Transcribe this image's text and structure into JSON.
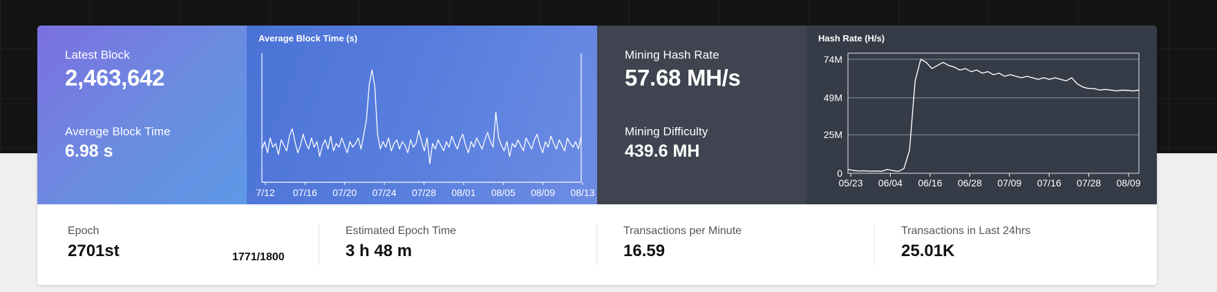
{
  "latest_block": {
    "label": "Latest Block",
    "value": "2,463,642"
  },
  "average_block_time": {
    "label": "Average Block Time",
    "value": "6.98 s"
  },
  "mining_hash_rate": {
    "label": "Mining Hash Rate",
    "value": "57.68 MH/s"
  },
  "mining_difficulty": {
    "label": "Mining Difficulty",
    "value": "439.6 MH"
  },
  "epoch": {
    "label": "Epoch",
    "value": "2701st",
    "progress": "1771/1800"
  },
  "estimated_epoch_time": {
    "label": "Estimated Epoch Time",
    "value": "3 h 48 m"
  },
  "transactions_per_minute": {
    "label": "Transactions per Minute",
    "value": "16.59"
  },
  "transactions_24h": {
    "label": "Transactions in Last 24hrs",
    "value": "25.01K"
  },
  "colors": {
    "block_panel": "#7086e0",
    "block_chart_panel": "#5a80de",
    "mining_panel": "#3f4450",
    "hash_chart_panel": "#353c47"
  },
  "chart_data": [
    {
      "type": "line",
      "title": "Average Block Time (s)",
      "x_tick_labels": [
        "7/12",
        "07/16",
        "07/20",
        "07/24",
        "07/28",
        "08/01",
        "08/05",
        "08/09",
        "08/13"
      ],
      "grid": false,
      "series": [
        {
          "values": [
            6.8,
            7.2,
            6.6,
            7.4,
            6.9,
            7.1,
            6.5,
            7.3,
            7.0,
            6.7,
            7.5,
            7.9,
            7.2,
            6.6,
            7.0,
            7.6,
            7.1,
            6.8,
            7.4,
            6.9,
            7.2,
            6.4,
            7.0,
            7.3,
            6.8,
            7.5,
            6.7,
            7.1,
            6.9,
            7.4,
            7.0,
            6.6,
            7.2,
            6.9,
            7.1,
            7.4,
            6.8,
            7.6,
            8.4,
            10.3,
            11.1,
            10.2,
            7.6,
            6.8,
            7.2,
            6.9,
            7.4,
            6.7,
            7.1,
            7.3,
            6.8,
            7.2,
            7.0,
            6.6,
            7.3,
            6.9,
            7.1,
            7.8,
            7.2,
            6.7,
            7.4,
            6.0,
            7.1,
            6.8,
            7.3,
            7.0,
            6.7,
            7.2,
            6.9,
            7.5,
            7.1,
            6.8,
            7.3,
            7.6,
            7.0,
            6.6,
            7.2,
            6.9,
            7.4,
            7.1,
            6.8,
            7.3,
            7.7,
            7.2,
            6.9,
            8.8,
            7.4,
            7.0,
            6.7,
            7.2,
            6.4,
            7.1,
            6.9,
            7.3,
            7.0,
            6.7,
            7.4,
            7.1,
            6.8,
            7.3,
            7.6,
            7.0,
            6.6,
            7.2,
            6.9,
            7.5,
            7.1,
            6.8,
            7.3,
            7.0,
            6.7,
            7.4,
            7.1,
            6.9,
            7.2,
            6.8,
            7.5
          ]
        }
      ]
    },
    {
      "type": "line",
      "title": "Hash Rate (H/s)",
      "x_tick_labels": [
        "05/23",
        "06/04",
        "06/16",
        "06/28",
        "07/09",
        "07/16",
        "07/28",
        "08/09"
      ],
      "y_tick_labels": [
        "0",
        "25M",
        "49M",
        "74M"
      ],
      "ylim": [
        0,
        78000000
      ],
      "grid": true,
      "series": [
        {
          "values": [
            2500000,
            1800000,
            1500000,
            1600000,
            1400000,
            1500000,
            1300000,
            2500000,
            1800000,
            1200000,
            3000000,
            15000000,
            60000000,
            74000000,
            72000000,
            68000000,
            70000000,
            72000000,
            70000000,
            69000000,
            67000000,
            68000000,
            66000000,
            67000000,
            65000000,
            66000000,
            64000000,
            65000000,
            63000000,
            64000000,
            63000000,
            62000000,
            63000000,
            62000000,
            61000000,
            62000000,
            61000000,
            62000000,
            61000000,
            60000000,
            62000000,
            58000000,
            56000000,
            55000000,
            55000000,
            54000000,
            54500000,
            54000000,
            53500000,
            54000000,
            53800000,
            53500000,
            54000000
          ]
        }
      ]
    }
  ]
}
